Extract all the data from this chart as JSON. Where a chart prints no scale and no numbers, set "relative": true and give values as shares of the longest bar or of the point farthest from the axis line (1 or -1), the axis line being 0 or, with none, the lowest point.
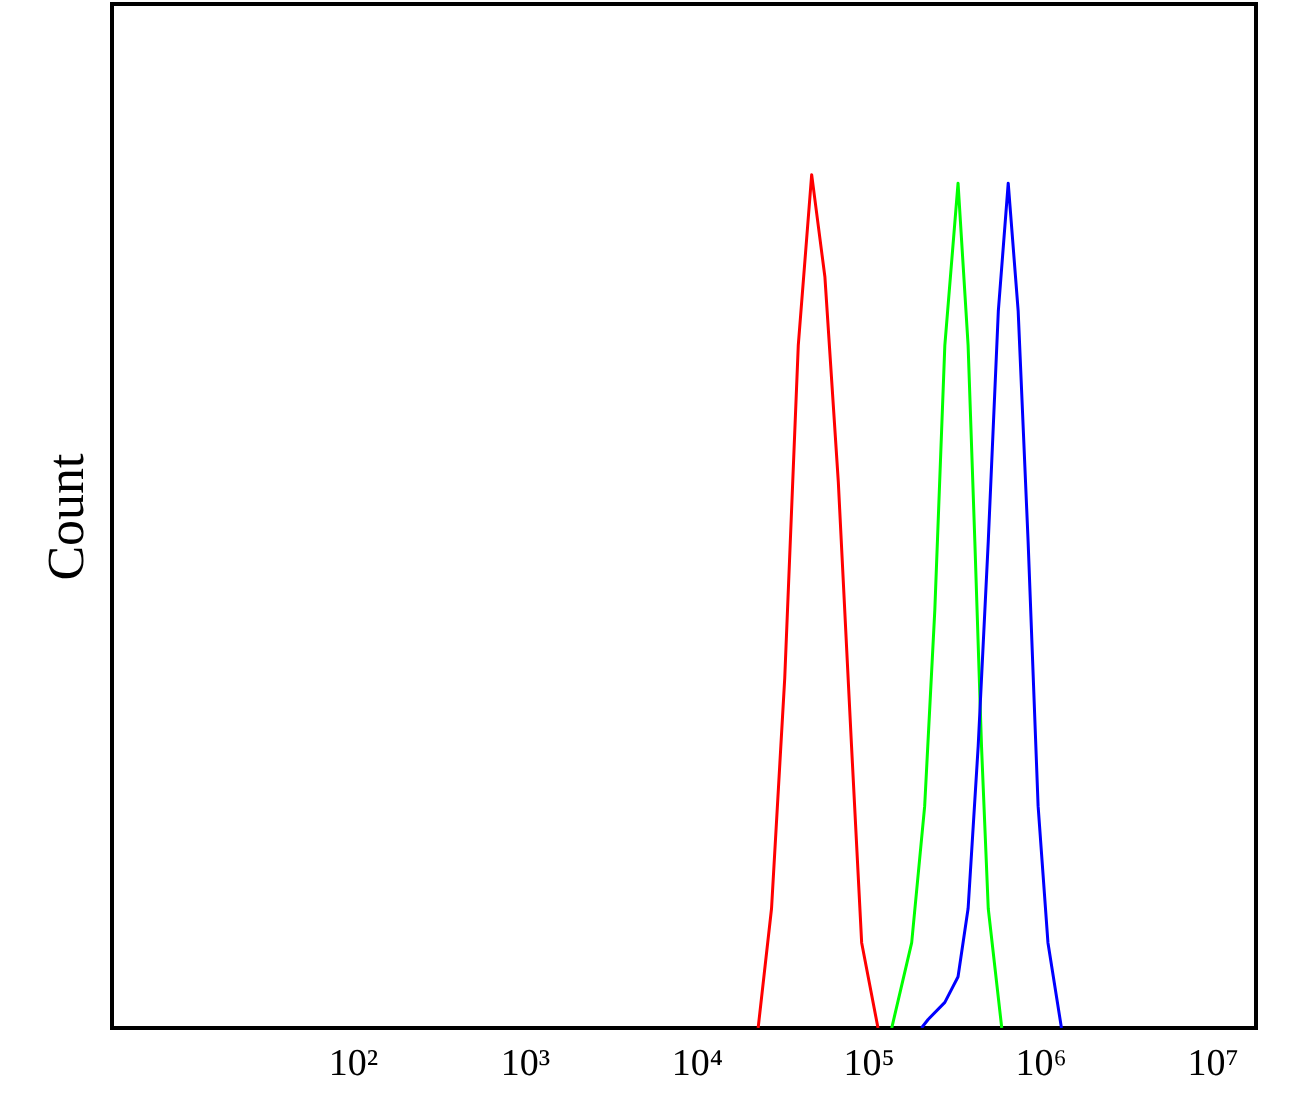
{
  "chart_data": {
    "type": "line",
    "ylabel": "Count",
    "relative": true,
    "log": "x",
    "xlim": [
      4,
      18000000
    ],
    "xticks": [
      {
        "value": 100,
        "label": "10²"
      },
      {
        "value": 1000,
        "label": "10³"
      },
      {
        "value": 10000,
        "label": "10⁴"
      },
      {
        "value": 100000,
        "label": "10⁵"
      },
      {
        "value": 1000000,
        "label": "10⁶"
      },
      {
        "value": 10000000,
        "label": "10⁷"
      }
    ],
    "series": [
      {
        "color": "#ff0000",
        "x": [
          22900,
          27400,
          32700,
          39200,
          46900,
          56000,
          67000,
          80000,
          91600,
          114000
        ],
        "values": [
          0,
          0.14,
          0.41,
          0.8,
          1,
          0.88,
          0.64,
          0.33,
          0.1,
          0
        ]
      },
      {
        "color": "#00ff00",
        "x": [
          137000,
          179000,
          213000,
          244000,
          279000,
          333000,
          381000,
          417000,
          456000,
          499000,
          598000
        ],
        "values": [
          0,
          0.1,
          0.26,
          0.49,
          0.8,
          0.99,
          0.8,
          0.57,
          0.33,
          0.14,
          0
        ]
      },
      {
        "color": "#0000ff",
        "x": [
          204000,
          223000,
          279000,
          333000,
          381000,
          436000,
          499000,
          571000,
          652000,
          745000,
          851000,
          973000,
          1110000,
          1330000
        ],
        "values": [
          0,
          0.01,
          0.03,
          0.06,
          0.14,
          0.33,
          0.57,
          0.84,
          0.99,
          0.84,
          0.57,
          0.26,
          0.1,
          0
        ]
      }
    ]
  }
}
